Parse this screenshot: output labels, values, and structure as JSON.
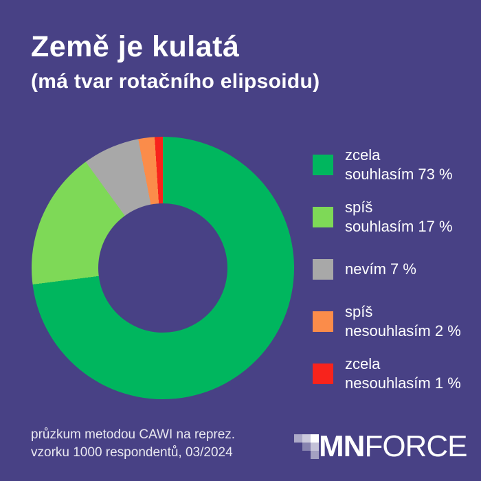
{
  "background": "#484185",
  "header": {
    "title": "Země je kulatá",
    "subtitle": "(má tvar rotačního elipsoidu)"
  },
  "chart_data": {
    "type": "pie",
    "variant": "donut",
    "start_angle_deg": 0,
    "direction": "clockwise",
    "categories": [
      "zcela souhlasím",
      "spíš souhlasím",
      "nevím",
      "spíš nesouhlasím",
      "zcela nesouhlasím"
    ],
    "values": [
      73,
      17,
      7,
      2,
      1
    ],
    "unit": "%",
    "colors": [
      "#00b65e",
      "#7ed957",
      "#a8a8a8",
      "#fb8c4a",
      "#f8231c"
    ],
    "title": "Země je kulatá (má tvar rotačního elipsoidu)",
    "legend_position": "right",
    "hole_ratio": 0.49
  },
  "legend": {
    "items": [
      {
        "lines": [
          "zcela",
          "souhlasím 73 %"
        ],
        "color": "#00b65e"
      },
      {
        "lines": [
          "spíš",
          "souhlasím 17 %"
        ],
        "color": "#7ed957"
      },
      {
        "lines": [
          "nevím 7 %"
        ],
        "color": "#a8a8a8"
      },
      {
        "lines": [
          "spíš",
          "nesouhlasím 2 %"
        ],
        "color": "#fb8c4a"
      },
      {
        "lines": [
          "zcela",
          "nesouhlasím 1 %"
        ],
        "color": "#f8231c"
      }
    ]
  },
  "footer": {
    "line1": "průzkum metodou CAWI na reprez.",
    "line2": "vzorku 1000 respondentů, 03/2024"
  },
  "logo": {
    "bold_text": "MN",
    "light_text": "FORCE",
    "mark_cells": [
      [
        0.55,
        0.72,
        1.0
      ],
      [
        0,
        0.35,
        0.68
      ],
      [
        0,
        0,
        0.5
      ]
    ]
  }
}
